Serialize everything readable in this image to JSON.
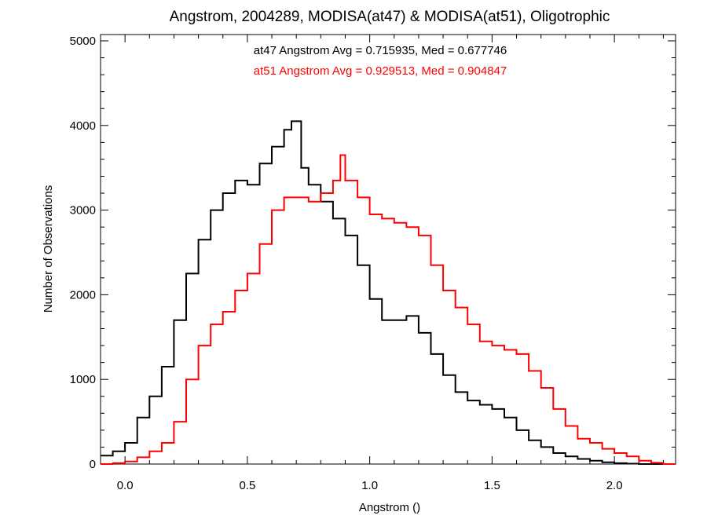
{
  "chart_data": {
    "type": "line",
    "style": "step-histogram",
    "title": "Angstrom, 2004289, MODISA(at47) & MODISA(at51), Oligotrophic",
    "xlabel": "Angstrom ()",
    "ylabel": "Number of Observations",
    "xlim": [
      -0.1,
      2.25
    ],
    "ylim": [
      0,
      5000
    ],
    "xticks": [
      0.0,
      0.5,
      1.0,
      1.5,
      2.0
    ],
    "xtick_labels": [
      "0.0",
      "0.5",
      "1.0",
      "1.5",
      "2.0"
    ],
    "yticks": [
      0,
      1000,
      2000,
      3000,
      4000,
      5000
    ],
    "ytick_labels": [
      "0",
      "1000",
      "2000",
      "3000",
      "4000",
      "5000"
    ],
    "grid": false,
    "legend": "none",
    "annotations": [
      {
        "text": "at47 Angstrom Avg = 0.715935, Med = 0.677746",
        "color": "#000000"
      },
      {
        "text": "at51 Angstrom Avg = 0.929513, Med = 0.904847",
        "color": "#ff0000"
      }
    ],
    "series": [
      {
        "color": "#000000",
        "x": [
          -0.1,
          -0.05,
          0.0,
          0.05,
          0.1,
          0.15,
          0.2,
          0.25,
          0.3,
          0.35,
          0.4,
          0.45,
          0.5,
          0.55,
          0.6,
          0.65,
          0.68,
          0.72,
          0.75,
          0.8,
          0.85,
          0.9,
          0.95,
          1.0,
          1.05,
          1.1,
          1.15,
          1.2,
          1.25,
          1.3,
          1.35,
          1.4,
          1.45,
          1.5,
          1.55,
          1.6,
          1.65,
          1.7,
          1.75,
          1.8,
          1.85,
          1.9,
          1.95,
          2.0,
          2.05,
          2.1,
          2.15,
          2.2,
          2.25
        ],
        "values": [
          100,
          150,
          250,
          550,
          800,
          1150,
          1700,
          2250,
          2650,
          3000,
          3200,
          3350,
          3300,
          3550,
          3750,
          3950,
          4050,
          3500,
          3300,
          3100,
          2900,
          2700,
          2350,
          1950,
          1700,
          1700,
          1750,
          1550,
          1300,
          1050,
          850,
          750,
          700,
          650,
          550,
          400,
          280,
          200,
          130,
          90,
          60,
          40,
          20,
          10,
          5,
          0,
          0,
          0,
          0
        ]
      },
      {
        "color": "#ff0000",
        "x": [
          -0.1,
          -0.05,
          0.0,
          0.05,
          0.1,
          0.15,
          0.2,
          0.25,
          0.3,
          0.35,
          0.4,
          0.45,
          0.5,
          0.55,
          0.6,
          0.65,
          0.7,
          0.75,
          0.8,
          0.85,
          0.88,
          0.9,
          0.95,
          1.0,
          1.05,
          1.1,
          1.15,
          1.2,
          1.25,
          1.3,
          1.35,
          1.4,
          1.45,
          1.5,
          1.55,
          1.6,
          1.65,
          1.7,
          1.75,
          1.8,
          1.85,
          1.9,
          1.95,
          2.0,
          2.05,
          2.1,
          2.15,
          2.2,
          2.25
        ],
        "values": [
          0,
          10,
          30,
          80,
          150,
          250,
          500,
          1000,
          1400,
          1650,
          1800,
          2050,
          2250,
          2600,
          3000,
          3150,
          3150,
          3100,
          3200,
          3350,
          3650,
          3350,
          3150,
          2950,
          2900,
          2850,
          2800,
          2700,
          2350,
          2050,
          1850,
          1650,
          1450,
          1400,
          1350,
          1300,
          1100,
          900,
          650,
          450,
          300,
          250,
          180,
          130,
          90,
          40,
          15,
          0,
          0
        ]
      }
    ]
  }
}
